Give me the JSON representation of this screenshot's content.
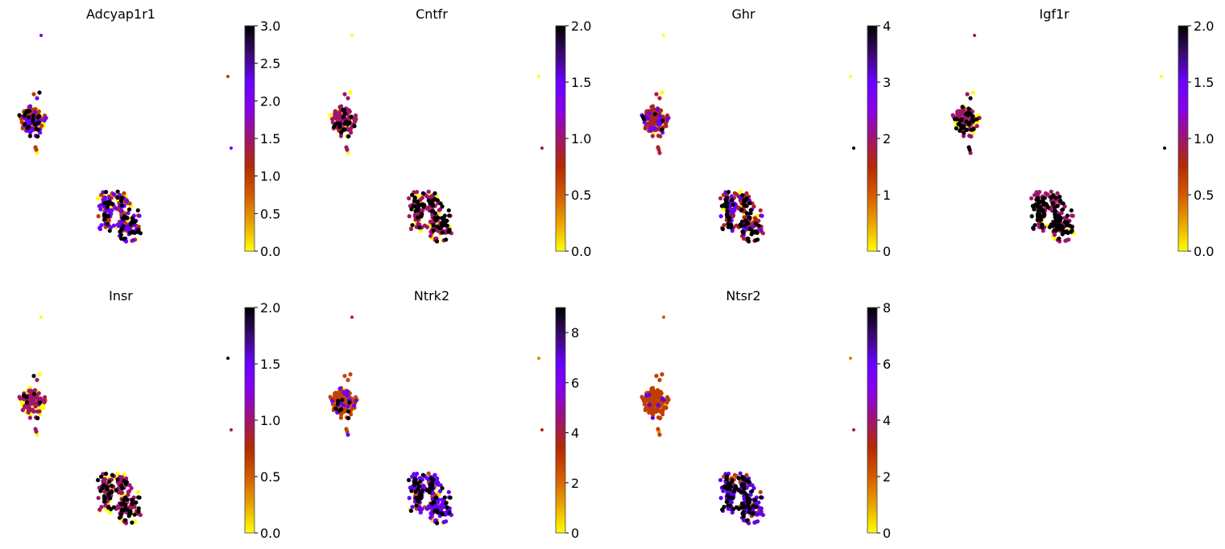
{
  "chart_data": {
    "type": "scatter",
    "description": "UMAP embedding of cells colored by gene expression (gnuplot colormap, yellow=low to black=high)",
    "colormap": [
      "#ffff00",
      "#e8a400",
      "#d45a00",
      "#b52a00",
      "#a0146e",
      "#8a00e6",
      "#6a00ff",
      "#3a0a70",
      "#000000"
    ],
    "xlabel": "",
    "ylabel": "",
    "grid": false,
    "axes_visible": false,
    "legend": "colorbar-right",
    "panels": [
      {
        "title": "Adcyap1r1",
        "clim": [
          0,
          3.0
        ],
        "ticks": [
          0.0,
          0.5,
          1.0,
          1.5,
          2.0,
          2.5,
          3.0
        ],
        "tick_labels": [
          "0.0",
          "0.5",
          "1.0",
          "1.5",
          "2.0",
          "2.5",
          "3.0"
        ],
        "cluster_mix": {
          "upper": [
            0.2,
            0.4,
            0.25,
            0.15
          ],
          "lower": [
            0.15,
            0.3,
            0.35,
            0.2
          ]
        },
        "level_values": [
          0.0,
          1.0,
          2.2,
          3.0
        ],
        "outliers": [
          {
            "label": "top",
            "value": 2.2
          },
          {
            "label": "right-upper",
            "value": 1.0
          },
          {
            "label": "right-lower",
            "value": 2.2
          }
        ]
      },
      {
        "title": "Cntfr",
        "clim": [
          0,
          2.0
        ],
        "ticks": [
          0.0,
          0.5,
          1.0,
          1.5,
          2.0
        ],
        "tick_labels": [
          "0.0",
          "0.5",
          "1.0",
          "1.5",
          "2.0"
        ],
        "cluster_mix": {
          "upper": [
            0.4,
            0.5,
            0.0,
            0.1
          ],
          "lower": [
            0.2,
            0.55,
            0.0,
            0.25
          ]
        },
        "level_values": [
          0.0,
          1.0,
          1.0,
          2.0
        ],
        "outliers": [
          {
            "label": "top",
            "value": 0.0
          },
          {
            "label": "right-upper",
            "value": 0.0
          },
          {
            "label": "right-lower",
            "value": 1.0
          }
        ]
      },
      {
        "title": "Ghr",
        "clim": [
          0,
          4
        ],
        "ticks": [
          0,
          1,
          2,
          3,
          4
        ],
        "tick_labels": [
          "0",
          "1",
          "2",
          "3",
          "4"
        ],
        "cluster_mix": {
          "upper": [
            0.2,
            0.65,
            0.12,
            0.03
          ],
          "lower": [
            0.1,
            0.5,
            0.2,
            0.2
          ]
        },
        "level_values": [
          0.0,
          1.7,
          3.0,
          4.0
        ],
        "outliers": [
          {
            "label": "top",
            "value": 0.0
          },
          {
            "label": "right-upper",
            "value": 0.0
          },
          {
            "label": "right-lower",
            "value": 4.0
          }
        ]
      },
      {
        "title": "Igf1r",
        "clim": [
          0,
          2.0
        ],
        "ticks": [
          0.0,
          0.5,
          1.0,
          1.5,
          2.0
        ],
        "tick_labels": [
          "0.0",
          "0.5",
          "1.0",
          "1.5",
          "2.0"
        ],
        "cluster_mix": {
          "upper": [
            0.3,
            0.5,
            0.0,
            0.2
          ],
          "lower": [
            0.15,
            0.4,
            0.0,
            0.45
          ]
        },
        "level_values": [
          0.0,
          1.0,
          1.0,
          2.0
        ],
        "outliers": [
          {
            "label": "top",
            "value": 1.0
          },
          {
            "label": "right-upper",
            "value": 0.0
          },
          {
            "label": "right-lower",
            "value": 2.0
          }
        ]
      },
      {
        "title": "Insr",
        "clim": [
          0,
          2.0
        ],
        "ticks": [
          0.0,
          0.5,
          1.0,
          1.5,
          2.0
        ],
        "tick_labels": [
          "0.0",
          "0.5",
          "1.0",
          "1.5",
          "2.0"
        ],
        "cluster_mix": {
          "upper": [
            0.45,
            0.5,
            0.0,
            0.05
          ],
          "lower": [
            0.25,
            0.5,
            0.0,
            0.25
          ]
        },
        "level_values": [
          0.0,
          1.0,
          1.0,
          2.0
        ],
        "outliers": [
          {
            "label": "top",
            "value": 0.0
          },
          {
            "label": "right-upper",
            "value": 2.0
          },
          {
            "label": "right-lower",
            "value": 1.0
          }
        ]
      },
      {
        "title": "Ntrk2",
        "clim": [
          0,
          9
        ],
        "ticks": [
          0,
          2,
          4,
          6,
          8
        ],
        "tick_labels": [
          "0",
          "2",
          "4",
          "6",
          "8"
        ],
        "cluster_mix": {
          "upper": [
            0.1,
            0.75,
            0.1,
            0.05
          ],
          "lower": [
            0.05,
            0.2,
            0.55,
            0.2
          ]
        },
        "level_values": [
          0.5,
          2.8,
          6.8,
          9.0
        ],
        "outliers": [
          {
            "label": "top",
            "value": 3.6
          },
          {
            "label": "right-upper",
            "value": 1.5
          },
          {
            "label": "right-lower",
            "value": 3.5
          }
        ]
      },
      {
        "title": "Ntsr2",
        "clim": [
          0,
          8
        ],
        "ticks": [
          0,
          2,
          4,
          6,
          8
        ],
        "tick_labels": [
          "0",
          "2",
          "4",
          "6",
          "8"
        ],
        "cluster_mix": {
          "upper": [
            0.15,
            0.8,
            0.05,
            0.0
          ],
          "lower": [
            0.0,
            0.15,
            0.6,
            0.25
          ]
        },
        "level_values": [
          1.0,
          2.6,
          6.2,
          8.0
        ],
        "outliers": [
          {
            "label": "top",
            "value": 2.0
          },
          {
            "label": "right-upper",
            "value": 1.5
          },
          {
            "label": "right-lower",
            "value": 3.8
          }
        ]
      }
    ]
  }
}
